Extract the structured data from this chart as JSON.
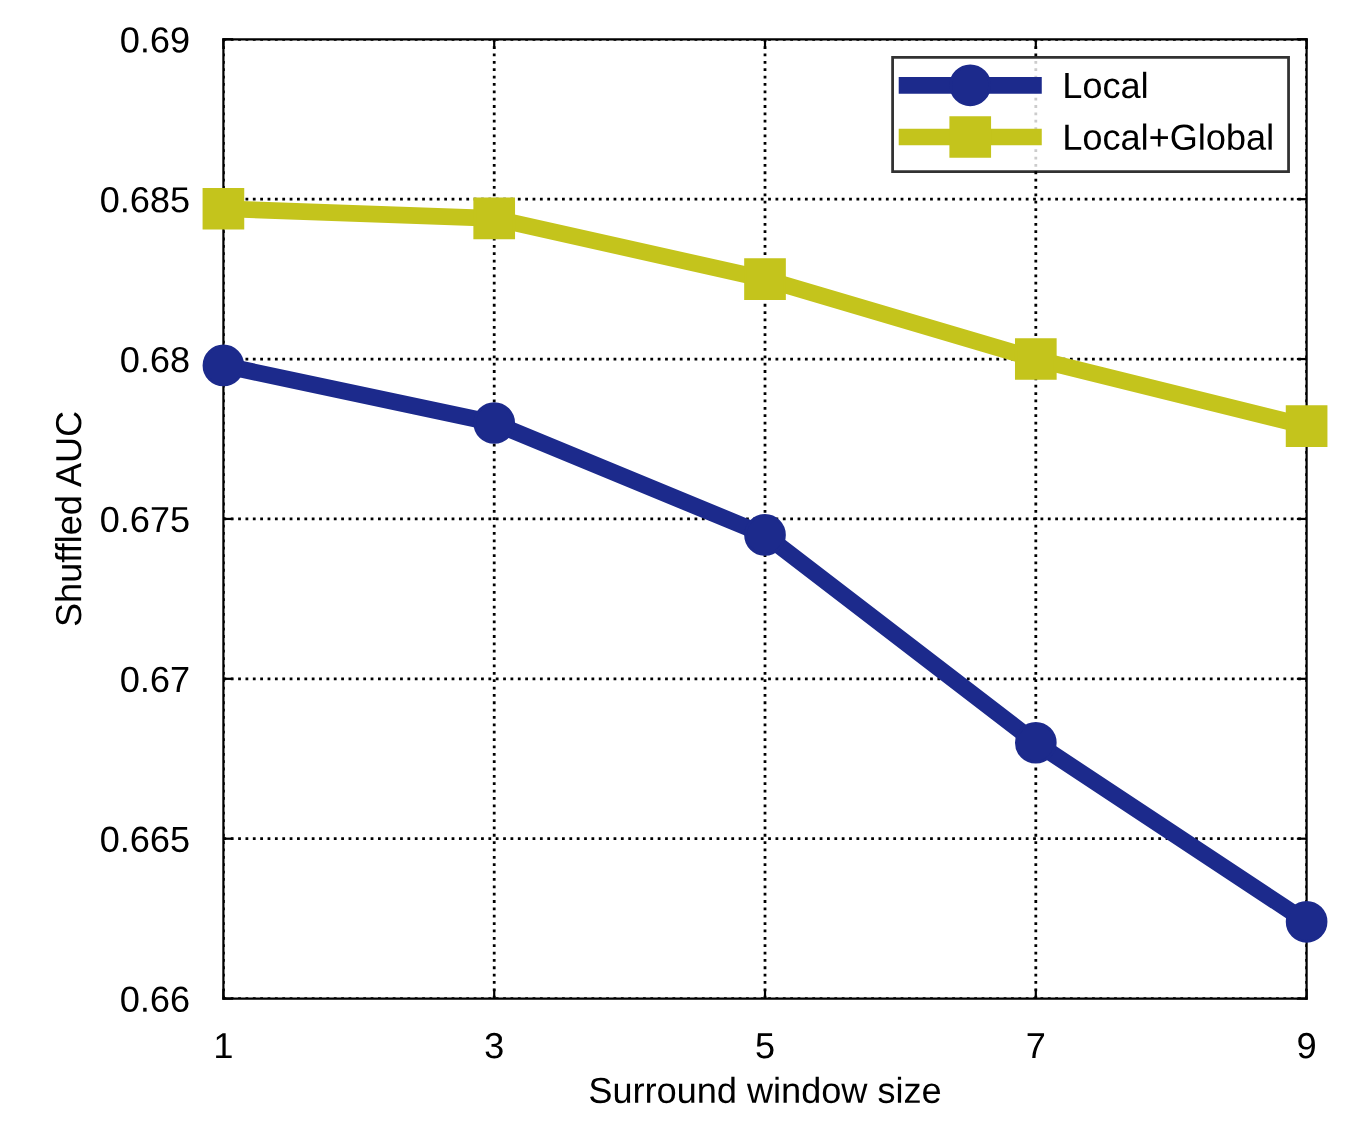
{
  "chart_data": {
    "type": "line",
    "xlabel": "Surround window size",
    "ylabel": "Shuffled AUC",
    "x": [
      1,
      3,
      5,
      7,
      9
    ],
    "series": [
      {
        "name": "Local",
        "color": "#1c2a8c",
        "marker": "circle",
        "values": [
          0.6798,
          0.678,
          0.6745,
          0.668,
          0.6624
        ]
      },
      {
        "name": "Local+Global",
        "color": "#c4c41c",
        "marker": "square",
        "values": [
          0.6847,
          0.6844,
          0.6825,
          0.68,
          0.6779
        ]
      }
    ],
    "xlim": [
      1,
      9
    ],
    "xticks": [
      1,
      3,
      5,
      7,
      9
    ],
    "ylim": [
      0.66,
      0.69
    ],
    "yticks": [
      0.66,
      0.665,
      0.67,
      0.675,
      0.68,
      0.685,
      0.69
    ],
    "grid": true,
    "legend": "top right",
    "line_style": "solid"
  }
}
